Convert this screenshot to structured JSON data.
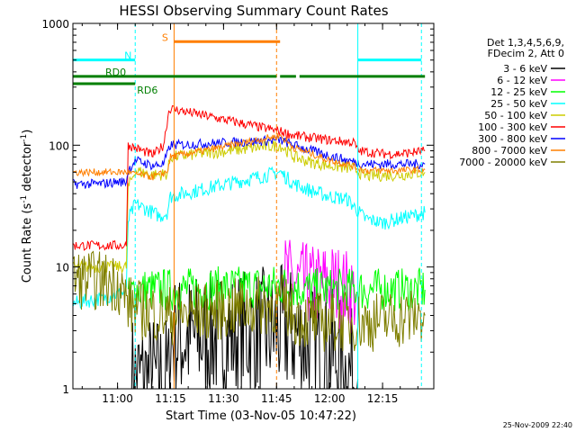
{
  "chart_data": {
    "type": "line",
    "title": "HESSI Observing Summary Count Rates",
    "xlabel": "Start Time (03-Nov-05 10:47:22)",
    "ylabel": "Count Rate (s",
    "ylabel_sup1": "-1",
    "ylabel_mid": " detector",
    "ylabel_sup2": "-1",
    "ylabel_end": ")",
    "y_scale": "log",
    "ylim": [
      1,
      1000
    ],
    "xlim": [
      "10:47:22",
      "12:29:30"
    ],
    "x_ticks": [
      "11:00",
      "11:15",
      "11:30",
      "11:45",
      "12:00",
      "12:15"
    ],
    "y_ticks": [
      "1",
      "10",
      "100",
      "1000"
    ],
    "legend_header": [
      "Det 1,3,4,5,6,9,",
      "FDecim 2, Att 0"
    ],
    "legend_placement": "right",
    "timestamp": "25-Nov-2009 22:40",
    "flags": [
      {
        "label": "N",
        "color": "#00ffff",
        "segments": [
          [
            "10:47:22",
            "11:05:00"
          ],
          [
            "12:08:00",
            "12:26:00"
          ]
        ],
        "level": 0.9
      },
      {
        "label": "S",
        "color": "#ff7f00",
        "segments": [
          [
            "11:16:00",
            "11:46:00"
          ]
        ],
        "level": 0.95
      },
      {
        "label": "RD0",
        "color": "#007f00",
        "segments": [
          [
            "10:47:22",
            "11:16:00"
          ],
          [
            "11:16:00",
            "11:45:00"
          ],
          [
            "11:46:00",
            "11:50:30"
          ],
          [
            "11:51:30",
            "12:27:00"
          ]
        ],
        "level": 0.855
      },
      {
        "label": "RD6",
        "color": "#007f00",
        "segments": [
          [
            "10:47:22",
            "11:05:00"
          ]
        ],
        "level": 0.835
      }
    ],
    "vlines": [
      {
        "t": "11:05:00",
        "color": "#00ffff",
        "style": "dashed"
      },
      {
        "t": "11:16:00",
        "color": "#ff7f00",
        "style": "solid"
      },
      {
        "t": "11:45:00",
        "color": "#ff7f00",
        "style": "dashed"
      },
      {
        "t": "12:08:00",
        "color": "#00ffff",
        "style": "solid"
      },
      {
        "t": "12:26:00",
        "color": "#00ffff",
        "style": "dashed"
      }
    ],
    "series": [
      {
        "name": "3 - 6 keV",
        "color": "#000000",
        "x": [
          "11:04:00",
          "11:14:30",
          "11:15:00",
          "11:48:30",
          "11:55:00",
          "12:00:00",
          "12:05:00",
          "12:08:00"
        ],
        "y": [
          1.2,
          1.2,
          2.5,
          3.0,
          2.2,
          2.0,
          1.4,
          1.2
        ]
      },
      {
        "name": "6 - 12 keV",
        "color": "#ff00ff",
        "x": [
          "11:47:00",
          "11:50:00",
          "11:55:00",
          "12:00:00",
          "12:05:00",
          "12:07:30"
        ],
        "y": [
          8.5,
          7.5,
          7.0,
          7.5,
          6.5,
          6.0
        ]
      },
      {
        "name": "12 - 25 keV",
        "color": "#00ff00",
        "x": [
          "11:03:00",
          "11:05:00",
          "11:10:00",
          "11:14:00",
          "11:47:00",
          "11:55:00",
          "12:00:00",
          "12:10:00",
          "12:20:00",
          "12:27:00"
        ],
        "y": [
          5.5,
          6.5,
          6.5,
          6.5,
          7.0,
          6.5,
          6.5,
          6.5,
          6.5,
          6.5
        ]
      },
      {
        "name": "25 - 50 keV",
        "color": "#00ffff",
        "x": [
          "10:47:30",
          "10:50:00",
          "10:55:00",
          "11:00:00",
          "11:02:30",
          "11:03:00",
          "11:05:00",
          "11:08:00",
          "11:12:00",
          "11:14:00",
          "11:15:00",
          "11:46:00",
          "11:50:00",
          "11:55:00",
          "12:00:00",
          "12:05:00",
          "12:10:00",
          "12:15:00",
          "12:20:00",
          "12:25:00",
          "12:27:00"
        ],
        "y": [
          5.0,
          5.2,
          5.5,
          6.0,
          6.2,
          24.0,
          33.0,
          30.0,
          26.0,
          28.0,
          38.0,
          60.0,
          48.0,
          42.0,
          38.0,
          36.0,
          25.0,
          23.0,
          25.0,
          27.0,
          28.0
        ]
      },
      {
        "name": "50 - 100 keV",
        "color": "#cccc00",
        "x": [
          "10:47:30",
          "11:00:00",
          "11:02:30",
          "11:03:00",
          "11:05:00",
          "11:10:00",
          "11:14:00",
          "11:15:00",
          "11:46:00",
          "11:50:00",
          "11:55:00",
          "12:00:00",
          "12:05:00",
          "12:07:00",
          "12:10:00",
          "12:20:00",
          "12:27:00"
        ],
        "y": [
          10.0,
          10.0,
          10.0,
          45.0,
          62.0,
          57.0,
          58.0,
          80.0,
          100.0,
          80.0,
          72.0,
          68.0,
          65.0,
          64.0,
          56.0,
          57.0,
          60.0
        ]
      },
      {
        "name": "100 - 300 keV",
        "color": "#ff0000",
        "x": [
          "10:47:30",
          "11:00:00",
          "11:02:30",
          "11:03:00",
          "11:05:00",
          "11:10:00",
          "11:13:00",
          "11:14:30",
          "11:15:00",
          "11:46:00",
          "11:50:00",
          "11:55:00",
          "12:00:00",
          "12:07:00",
          "12:08:00",
          "12:15:00",
          "12:20:00",
          "12:27:00"
        ],
        "y": [
          15.0,
          15.0,
          15.0,
          100.0,
          95.0,
          83.0,
          100.0,
          190.0,
          200.0,
          130.0,
          120.0,
          115.0,
          110.0,
          105.0,
          90.0,
          85.0,
          85.0,
          90.0
        ]
      },
      {
        "name": "300 - 800 keV",
        "color": "#0000ff",
        "x": [
          "10:47:30",
          "10:55:00",
          "11:00:00",
          "11:02:30",
          "11:03:00",
          "11:05:00",
          "11:10:00",
          "11:13:00",
          "11:15:00",
          "11:46:00",
          "11:50:00",
          "11:55:00",
          "12:00:00",
          "12:05:00",
          "12:10:00",
          "12:20:00",
          "12:27:00"
        ],
        "y": [
          48.0,
          48.0,
          50.0,
          50.0,
          62.0,
          75.0,
          68.0,
          70.0,
          100.0,
          110.0,
          100.0,
          90.0,
          82.0,
          75.0,
          70.0,
          70.0,
          70.0
        ]
      },
      {
        "name": "800 - 7000 keV",
        "color": "#ff7f00",
        "x": [
          "10:47:30",
          "11:00:00",
          "11:03:00",
          "11:05:00",
          "11:10:00",
          "11:14:00",
          "11:15:00",
          "11:46:00",
          "11:50:00",
          "11:55:00",
          "12:00:00",
          "12:05:00",
          "12:10:00",
          "12:20:00",
          "12:27:00"
        ],
        "y": [
          60.0,
          60.0,
          60.0,
          58.0,
          55.0,
          60.0,
          80.0,
          120.0,
          95.0,
          85.0,
          75.0,
          70.0,
          62.0,
          62.0,
          63.0
        ]
      },
      {
        "name": "7000 - 20000 keV",
        "color": "#7f7f00",
        "x": [
          "10:47:30",
          "11:00:00",
          "11:03:00",
          "11:05:00",
          "11:10:00",
          "11:14:00",
          "11:47:00",
          "11:50:00",
          "11:55:00",
          "12:00:00",
          "12:05:00",
          "12:10:00",
          "12:20:00",
          "12:27:00"
        ],
        "y": [
          8.0,
          7.5,
          5.0,
          4.5,
          4.3,
          4.0,
          5.0,
          4.0,
          3.6,
          3.5,
          3.6,
          3.5,
          3.8,
          4.0
        ]
      }
    ]
  }
}
